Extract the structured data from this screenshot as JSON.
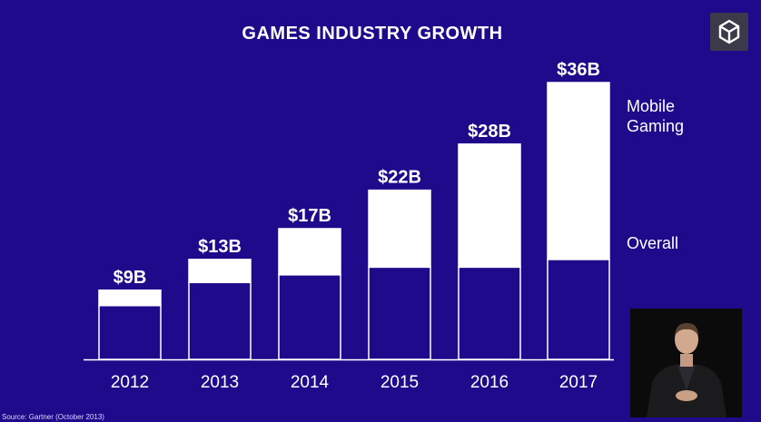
{
  "slide": {
    "title": "GAMES INDUSTRY GROWTH",
    "source": "Source: Gartner (October 2013)",
    "logo_icon": "unity-logo-icon",
    "background_color": "#1f0a8c"
  },
  "legend": {
    "mobile": "Mobile Gaming",
    "overall": "Overall"
  },
  "chart_data": {
    "type": "bar",
    "title": "GAMES INDUSTRY GROWTH",
    "categories": [
      "2012",
      "2013",
      "2014",
      "2015",
      "2016",
      "2017"
    ],
    "total_labels": [
      "$9B",
      "$13B",
      "$17B",
      "$22B",
      "$28B",
      "$36B"
    ],
    "series": [
      {
        "name": "Overall",
        "values": [
          7,
          10,
          11,
          12,
          12,
          13
        ]
      },
      {
        "name": "Mobile Gaming",
        "values": [
          2,
          3,
          6,
          10,
          16,
          23
        ]
      }
    ],
    "stacked": true,
    "colors": {
      "Overall": "#1f0a8c",
      "Mobile Gaming": "#ffffff"
    },
    "grid": false,
    "legend_position": "right"
  }
}
